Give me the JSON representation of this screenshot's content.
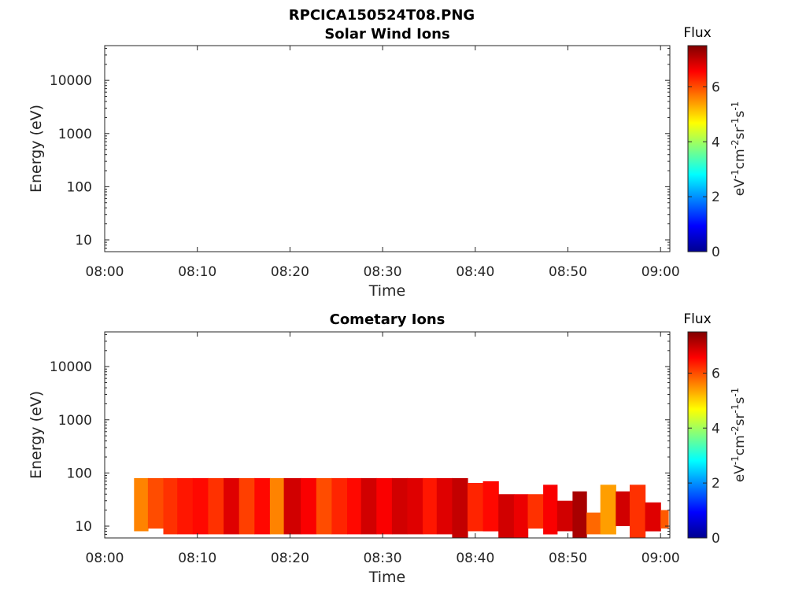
{
  "figure": {
    "title": "RPCICA150524T08.PNG"
  },
  "chart_data": [
    {
      "type": "heatmap",
      "title": "Solar Wind Ions",
      "xlabel": "Time",
      "ylabel": "Energy (eV)",
      "yscale": "log",
      "xticks": [
        "08:00",
        "08:10",
        "08:20",
        "08:30",
        "08:40",
        "08:50",
        "09:00"
      ],
      "yticks": [
        "10",
        "100",
        "1000",
        "10000"
      ],
      "colorbar": {
        "label": "Flux",
        "unit": "eV-1cm-2sr-1s-1",
        "range": [
          0,
          7.5
        ],
        "ticks": [
          "0",
          "2",
          "4",
          "6"
        ]
      },
      "cells": []
    },
    {
      "type": "heatmap",
      "title": "Cometary Ions",
      "xlabel": "Time",
      "ylabel": "Energy (eV)",
      "yscale": "log",
      "xticks": [
        "08:00",
        "08:10",
        "08:20",
        "08:30",
        "08:40",
        "08:50",
        "09:00"
      ],
      "yticks": [
        "10",
        "100",
        "1000",
        "10000"
      ],
      "colorbar": {
        "label": "Flux",
        "unit": "eV-1cm-2sr-1s-1",
        "range": [
          0,
          7.5
        ],
        "ticks": [
          "0",
          "2",
          "4",
          "6"
        ]
      },
      "cells": [
        {
          "t0": "08:03:10",
          "t1": "08:04:40",
          "e0": 8,
          "e1": 80,
          "flux": 5.6
        },
        {
          "t0": "08:04:40",
          "t1": "08:06:20",
          "e0": 9,
          "e1": 80,
          "flux": 6.0
        },
        {
          "t0": "08:06:20",
          "t1": "08:07:50",
          "e0": 7,
          "e1": 80,
          "flux": 6.2
        },
        {
          "t0": "08:07:50",
          "t1": "08:09:30",
          "e0": 7,
          "e1": 80,
          "flux": 6.4
        },
        {
          "t0": "08:09:30",
          "t1": "08:11:10",
          "e0": 7,
          "e1": 80,
          "flux": 6.5
        },
        {
          "t0": "08:11:10",
          "t1": "08:12:50",
          "e0": 7,
          "e1": 80,
          "flux": 6.2
        },
        {
          "t0": "08:12:50",
          "t1": "08:14:30",
          "e0": 7,
          "e1": 80,
          "flux": 6.8
        },
        {
          "t0": "08:14:30",
          "t1": "08:16:10",
          "e0": 7,
          "e1": 80,
          "flux": 6.1
        },
        {
          "t0": "08:16:10",
          "t1": "08:17:50",
          "e0": 7,
          "e1": 80,
          "flux": 6.5
        },
        {
          "t0": "08:17:50",
          "t1": "08:19:20",
          "e0": 7,
          "e1": 80,
          "flux": 5.6
        },
        {
          "t0": "08:19:20",
          "t1": "08:21:10",
          "e0": 7,
          "e1": 80,
          "flux": 6.9
        },
        {
          "t0": "08:21:10",
          "t1": "08:22:50",
          "e0": 7,
          "e1": 80,
          "flux": 6.6
        },
        {
          "t0": "08:22:50",
          "t1": "08:24:30",
          "e0": 7,
          "e1": 80,
          "flux": 6.0
        },
        {
          "t0": "08:24:30",
          "t1": "08:26:10",
          "e0": 7,
          "e1": 80,
          "flux": 6.3
        },
        {
          "t0": "08:26:10",
          "t1": "08:27:40",
          "e0": 7,
          "e1": 80,
          "flux": 6.5
        },
        {
          "t0": "08:27:40",
          "t1": "08:29:20",
          "e0": 7,
          "e1": 80,
          "flux": 6.9
        },
        {
          "t0": "08:29:20",
          "t1": "08:31:00",
          "e0": 7,
          "e1": 80,
          "flux": 6.6
        },
        {
          "t0": "08:31:00",
          "t1": "08:32:40",
          "e0": 7,
          "e1": 80,
          "flux": 6.9
        },
        {
          "t0": "08:32:40",
          "t1": "08:34:20",
          "e0": 7,
          "e1": 80,
          "flux": 6.8
        },
        {
          "t0": "08:34:20",
          "t1": "08:35:50",
          "e0": 7,
          "e1": 80,
          "flux": 6.4
        },
        {
          "t0": "08:35:50",
          "t1": "08:37:30",
          "e0": 7,
          "e1": 80,
          "flux": 6.8
        },
        {
          "t0": "08:37:30",
          "t1": "08:39:10",
          "e0": 6,
          "e1": 80,
          "flux": 7.0
        },
        {
          "t0": "08:39:10",
          "t1": "08:40:50",
          "e0": 8,
          "e1": 65,
          "flux": 6.3
        },
        {
          "t0": "08:40:50",
          "t1": "08:42:30",
          "e0": 8,
          "e1": 70,
          "flux": 6.5
        },
        {
          "t0": "08:42:30",
          "t1": "08:44:10",
          "e0": 6,
          "e1": 40,
          "flux": 6.9
        },
        {
          "t0": "08:44:10",
          "t1": "08:45:40",
          "e0": 6,
          "e1": 40,
          "flux": 6.7
        },
        {
          "t0": "08:45:40",
          "t1": "08:47:20",
          "e0": 9,
          "e1": 40,
          "flux": 6.2
        },
        {
          "t0": "08:47:20",
          "t1": "08:48:50",
          "e0": 7,
          "e1": 60,
          "flux": 6.6
        },
        {
          "t0": "08:48:50",
          "t1": "08:50:30",
          "e0": 8,
          "e1": 30,
          "flux": 6.9
        },
        {
          "t0": "08:50:30",
          "t1": "08:52:00",
          "e0": 6,
          "e1": 45,
          "flux": 7.2
        },
        {
          "t0": "08:52:00",
          "t1": "08:53:30",
          "e0": 7,
          "e1": 18,
          "flux": 5.8
        },
        {
          "t0": "08:53:30",
          "t1": "08:55:10",
          "e0": 7,
          "e1": 60,
          "flux": 5.4
        },
        {
          "t0": "08:55:10",
          "t1": "08:56:40",
          "e0": 10,
          "e1": 45,
          "flux": 6.9
        },
        {
          "t0": "08:56:40",
          "t1": "08:58:20",
          "e0": 6,
          "e1": 60,
          "flux": 6.2
        },
        {
          "t0": "08:58:20",
          "t1": "09:00:00",
          "e0": 8,
          "e1": 28,
          "flux": 6.8
        },
        {
          "t0": "09:00:00",
          "t1": "09:00:50",
          "e0": 9,
          "e1": 20,
          "flux": 5.9
        }
      ]
    }
  ]
}
